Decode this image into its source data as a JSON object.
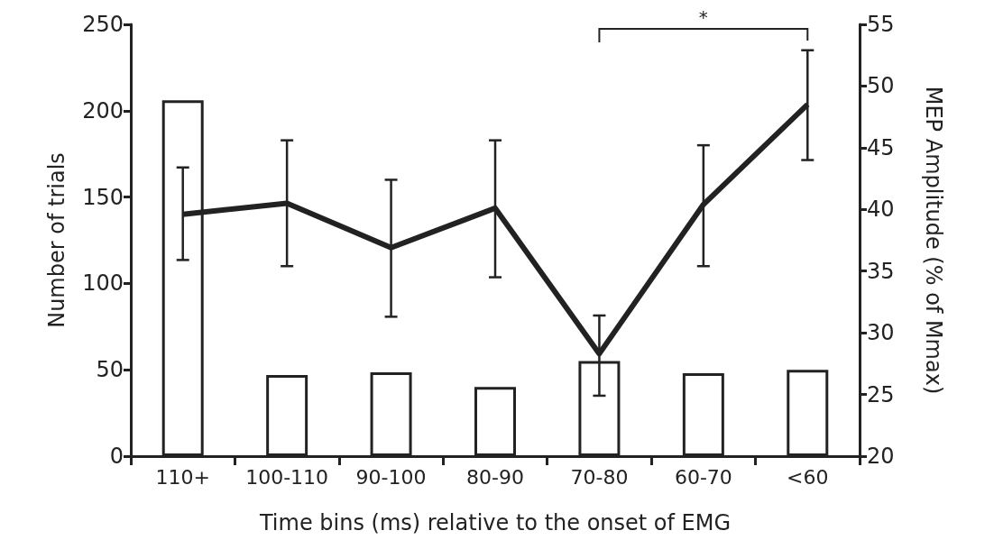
{
  "chart_data": {
    "type": "bar",
    "xlabel": "Time bins (ms) relative to the onset of EMG",
    "ylabel": "Number of trials",
    "y2label": "MEP Amplitude (% of Mmax)",
    "categories": [
      "110+",
      "100-110",
      "90-100",
      "80-90",
      "70-80",
      "60-70",
      "<60"
    ],
    "series": [
      {
        "color": "#ffffff",
        "values": [
          206,
          47,
          48.5,
          40,
          55,
          48,
          50
        ]
      },
      {
        "type": "line",
        "axis": "y2",
        "color": "#222222",
        "values": [
          39.6,
          40.5,
          36.9,
          40.1,
          28.3,
          40.4,
          48.5
        ],
        "errors": [
          [
            35.9,
            43.4
          ],
          [
            35.4,
            45.6
          ],
          [
            31.3,
            42.4
          ],
          [
            34.5,
            45.6
          ],
          [
            24.9,
            31.4
          ],
          [
            35.4,
            45.2
          ],
          [
            44.0,
            52.9
          ]
        ]
      }
    ],
    "ylim": [
      0,
      250
    ],
    "yticks": [
      0,
      50,
      100,
      150,
      200,
      250
    ],
    "y2lim": [
      20,
      55
    ],
    "y2ticks": [
      20,
      25,
      30,
      35,
      40,
      45,
      50,
      55
    ],
    "annotations": [
      "*"
    ],
    "grid": false,
    "marker": "none",
    "line_style": "solid"
  }
}
